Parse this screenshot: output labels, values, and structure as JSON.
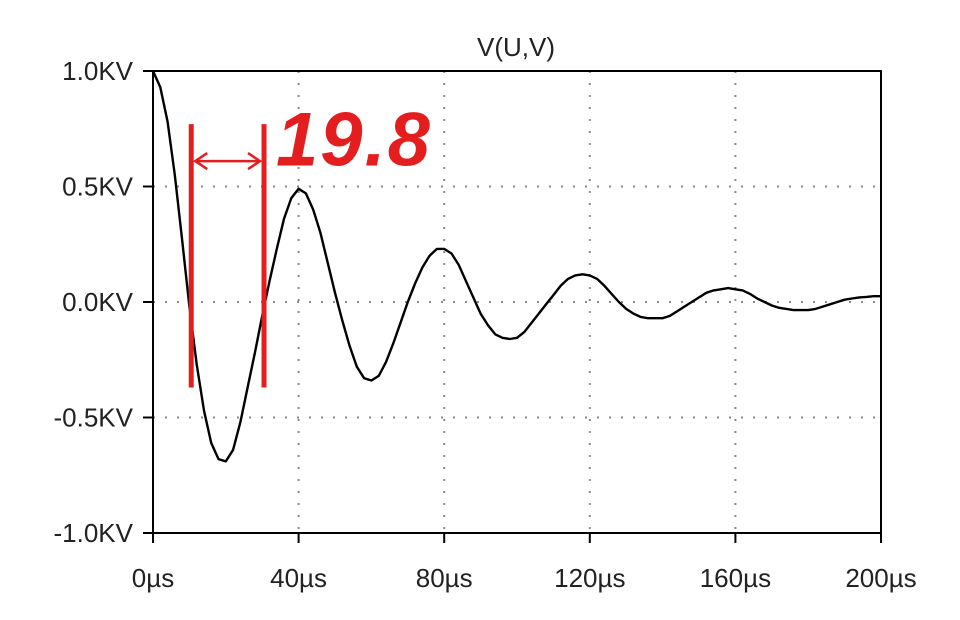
{
  "chart_data": {
    "type": "line",
    "title": "V(U,V)",
    "xlabel": "",
    "ylabel": "",
    "x_unit": "µs",
    "y_unit": "KV",
    "xlim": [
      0,
      200
    ],
    "ylim": [
      -1.0,
      1.0
    ],
    "x_ticks": [
      0,
      40,
      80,
      120,
      160,
      200
    ],
    "x_tick_labels": [
      "0µs",
      "40µs",
      "80µs",
      "120µs",
      "160µs",
      "200µs"
    ],
    "y_ticks": [
      1.0,
      0.5,
      0.0,
      -0.5,
      -1.0
    ],
    "y_tick_labels": [
      "1.0KV",
      "0.5KV",
      "0.0KV",
      "-0.5KV",
      "-1.0KV"
    ],
    "grid": true,
    "series": [
      {
        "name": "V(U,V)",
        "color": "#000000",
        "points": [
          [
            0,
            1.0
          ],
          [
            2,
            0.93
          ],
          [
            4,
            0.78
          ],
          [
            6,
            0.55
          ],
          [
            8,
            0.27
          ],
          [
            10,
            -0.02
          ],
          [
            12,
            -0.27
          ],
          [
            14,
            -0.47
          ],
          [
            16,
            -0.61
          ],
          [
            18,
            -0.68
          ],
          [
            20,
            -0.69
          ],
          [
            22,
            -0.64
          ],
          [
            24,
            -0.52
          ],
          [
            26,
            -0.37
          ],
          [
            28,
            -0.22
          ],
          [
            30,
            -0.06
          ],
          [
            32,
            0.09
          ],
          [
            34,
            0.23
          ],
          [
            36,
            0.36
          ],
          [
            38,
            0.45
          ],
          [
            40,
            0.49
          ],
          [
            42,
            0.47
          ],
          [
            44,
            0.4
          ],
          [
            46,
            0.3
          ],
          [
            48,
            0.17
          ],
          [
            50,
            0.04
          ],
          [
            52,
            -0.08
          ],
          [
            54,
            -0.19
          ],
          [
            56,
            -0.28
          ],
          [
            58,
            -0.33
          ],
          [
            60,
            -0.34
          ],
          [
            62,
            -0.32
          ],
          [
            64,
            -0.26
          ],
          [
            66,
            -0.18
          ],
          [
            68,
            -0.09
          ],
          [
            70,
            0.0
          ],
          [
            72,
            0.08
          ],
          [
            74,
            0.15
          ],
          [
            76,
            0.2
          ],
          [
            78,
            0.23
          ],
          [
            80,
            0.23
          ],
          [
            82,
            0.21
          ],
          [
            84,
            0.16
          ],
          [
            86,
            0.09
          ],
          [
            88,
            0.02
          ],
          [
            90,
            -0.05
          ],
          [
            92,
            -0.1
          ],
          [
            94,
            -0.14
          ],
          [
            96,
            -0.155
          ],
          [
            98,
            -0.16
          ],
          [
            100,
            -0.155
          ],
          [
            102,
            -0.13
          ],
          [
            104,
            -0.09
          ],
          [
            106,
            -0.05
          ],
          [
            108,
            -0.01
          ],
          [
            110,
            0.03
          ],
          [
            112,
            0.07
          ],
          [
            114,
            0.1
          ],
          [
            116,
            0.115
          ],
          [
            118,
            0.12
          ],
          [
            120,
            0.115
          ],
          [
            122,
            0.1
          ],
          [
            124,
            0.07
          ],
          [
            126,
            0.035
          ],
          [
            128,
            0.0
          ],
          [
            130,
            -0.03
          ],
          [
            132,
            -0.05
          ],
          [
            134,
            -0.065
          ],
          [
            136,
            -0.07
          ],
          [
            138,
            -0.07
          ],
          [
            140,
            -0.07
          ],
          [
            142,
            -0.06
          ],
          [
            144,
            -0.04
          ],
          [
            146,
            -0.02
          ],
          [
            148,
            0.0
          ],
          [
            150,
            0.02
          ],
          [
            152,
            0.04
          ],
          [
            154,
            0.05
          ],
          [
            156,
            0.055
          ],
          [
            158,
            0.06
          ],
          [
            160,
            0.055
          ],
          [
            162,
            0.05
          ],
          [
            164,
            0.035
          ],
          [
            166,
            0.015
          ],
          [
            168,
            0.0
          ],
          [
            170,
            -0.015
          ],
          [
            172,
            -0.025
          ],
          [
            174,
            -0.03
          ],
          [
            176,
            -0.035
          ],
          [
            178,
            -0.035
          ],
          [
            180,
            -0.035
          ],
          [
            182,
            -0.03
          ],
          [
            184,
            -0.02
          ],
          [
            186,
            -0.01
          ],
          [
            188,
            0.0
          ],
          [
            190,
            0.01
          ],
          [
            192,
            0.015
          ],
          [
            194,
            0.02
          ],
          [
            196,
            0.022
          ],
          [
            198,
            0.025
          ],
          [
            200,
            0.025
          ]
        ]
      }
    ],
    "annotation": {
      "text": "19.8",
      "color": "#e41e1e",
      "cursor_x": [
        10.5,
        30.5
      ],
      "cursor_y_range": [
        -0.37,
        0.77
      ],
      "arrow_y": 0.61
    }
  }
}
